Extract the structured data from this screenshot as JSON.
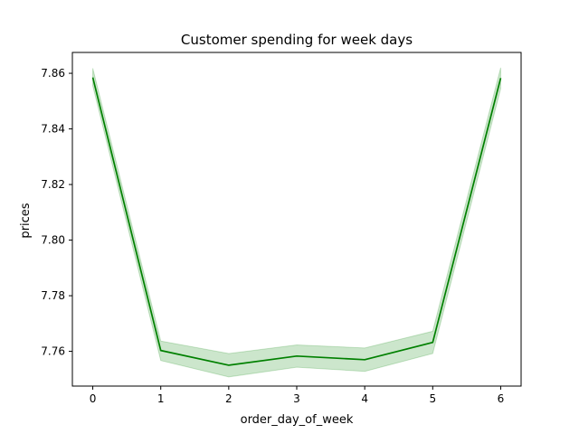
{
  "chart_data": {
    "type": "line",
    "title": "Customer spending for week days",
    "xlabel": "order_day_of_week",
    "ylabel": "prices",
    "x": [
      0,
      1,
      2,
      3,
      4,
      5,
      6
    ],
    "series": [
      {
        "values": [
          7.8585,
          7.7603,
          7.755,
          7.7583,
          7.757,
          7.7632,
          7.8583
        ],
        "ci_lower": [
          7.8555,
          7.7567,
          7.7508,
          7.7543,
          7.7528,
          7.7592,
          7.8545
        ],
        "ci_upper": [
          7.8618,
          7.7637,
          7.7592,
          7.7623,
          7.7612,
          7.7672,
          7.862
        ],
        "color": "#008000",
        "band_color": "#008000"
      }
    ],
    "xlim": [
      -0.3,
      6.3
    ],
    "ylim": [
      7.7475,
      7.8675
    ],
    "xticks": [
      0,
      1,
      2,
      3,
      4,
      5,
      6
    ],
    "yticks": [
      7.76,
      7.78,
      7.8,
      7.82,
      7.84,
      7.86
    ],
    "ytick_labels": [
      "7.76",
      "7.78",
      "7.80",
      "7.82",
      "7.84",
      "7.86"
    ],
    "grid": false,
    "legend": false
  }
}
